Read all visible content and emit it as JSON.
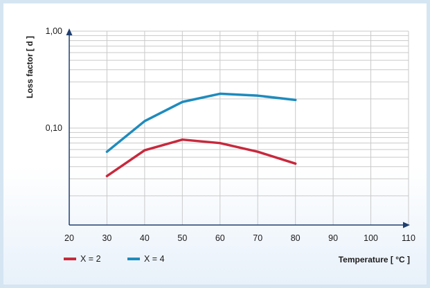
{
  "chart_data": {
    "type": "line",
    "ylabel": "Loss factor [ d ]",
    "xlabel": "Temperature [ °C ]",
    "x": [
      30,
      40,
      50,
      60,
      70,
      80
    ],
    "xlim": [
      20,
      110
    ],
    "xticks": [
      "20",
      "30",
      "40",
      "50",
      "60",
      "70",
      "80",
      "90",
      "100",
      "110"
    ],
    "ylim": [
      0.01,
      1.0
    ],
    "yscale": "log",
    "yticks": [
      {
        "value": 0.1,
        "label": "0,10"
      },
      {
        "value": 1.0,
        "label": "1,00"
      }
    ],
    "grid": true,
    "legend_position": "bottom-left",
    "series": [
      {
        "name": "X = 2",
        "color": "#c8283c",
        "values": [
          0.032,
          0.059,
          0.076,
          0.07,
          0.057,
          0.043
        ]
      },
      {
        "name": "X = 4",
        "color": "#1e8bbd",
        "values": [
          0.057,
          0.118,
          0.186,
          0.226,
          0.216,
          0.195
        ]
      }
    ]
  }
}
